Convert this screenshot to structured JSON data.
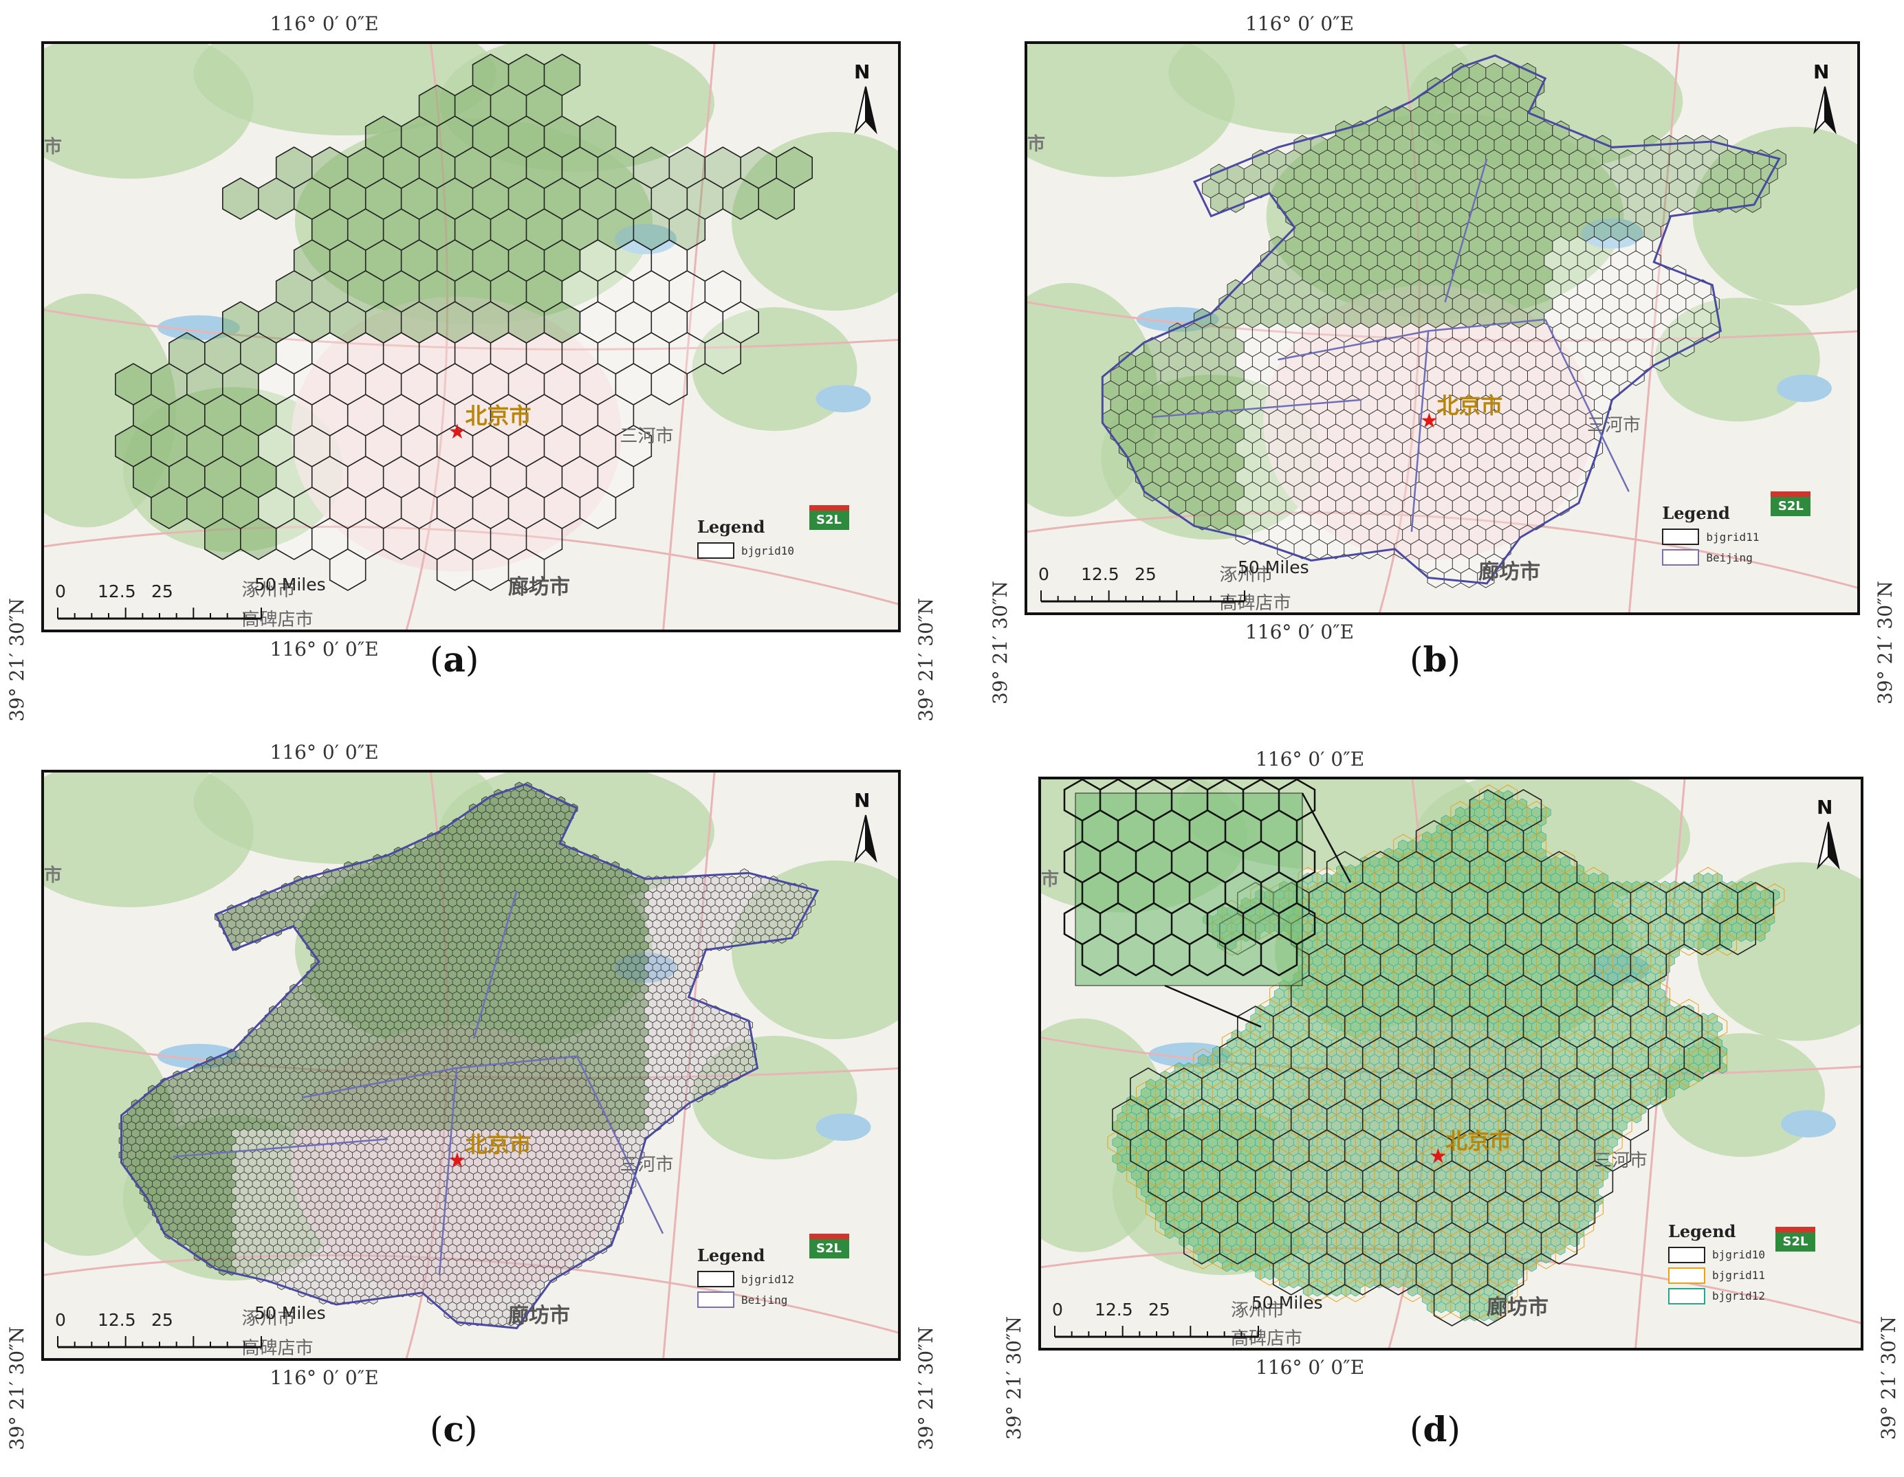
{
  "panels": [
    {
      "id": "a",
      "caption_letter": "a",
      "lon_top": "116° 0′ 0″E",
      "lon_bottom": "116° 0′ 0″E",
      "lat_left": "39° 21′ 30″N",
      "lat_right": "39° 21′ 30″N",
      "labels": {
        "capital": "北京市",
        "sanhe": "三河市",
        "langfang": "廊坊市",
        "zhuozhou": "涿州市",
        "gaobeidian": "高碑店市",
        "edge": "市"
      },
      "scale": {
        "ticks": [
          "0",
          "12.5",
          "25",
          "50 Miles"
        ]
      },
      "shield": "S2L",
      "north": "N",
      "legend": {
        "title": "Legend",
        "items": [
          {
            "label": "bjgrid10",
            "color": "#222222"
          }
        ]
      },
      "grid_level": 1
    },
    {
      "id": "b",
      "caption_letter": "b",
      "lon_top": "116° 0′ 0″E",
      "lon_bottom": "116° 0′ 0″E",
      "lat_left": "39° 21′ 30″N",
      "lat_right": "39° 21′ 30″N",
      "labels": {
        "capital": "北京市",
        "sanhe": "三河市",
        "langfang": "廊坊市",
        "zhuozhou": "涿州市",
        "gaobeidian": "高碑店市",
        "edge": "市"
      },
      "scale": {
        "ticks": [
          "0",
          "12.5",
          "25",
          "50 Miles"
        ]
      },
      "shield": "S2L",
      "north": "N",
      "legend": {
        "title": "Legend",
        "items": [
          {
            "label": "bjgrid11",
            "color": "#222222"
          },
          {
            "label": "Beijing",
            "color": "#7b6fb0"
          }
        ]
      },
      "grid_level": 2
    },
    {
      "id": "c",
      "caption_letter": "c",
      "lon_top": "116° 0′ 0″E",
      "lon_bottom": "116° 0′ 0″E",
      "lat_left": "39° 21′ 30″N",
      "lat_right": "39° 21′ 30″N",
      "labels": {
        "capital": "北京市",
        "sanhe": "三河市",
        "langfang": "廊坊市",
        "zhuozhou": "涿州市",
        "gaobeidian": "高碑店市",
        "edge": "市"
      },
      "scale": {
        "ticks": [
          "0",
          "12.5",
          "25",
          "50 Miles"
        ]
      },
      "shield": "S2L",
      "north": "N",
      "legend": {
        "title": "Legend",
        "items": [
          {
            "label": "bjgrid12",
            "color": "#222222"
          },
          {
            "label": "Beijing",
            "color": "#7b6fb0"
          }
        ]
      },
      "grid_level": 3
    },
    {
      "id": "d",
      "caption_letter": "d",
      "lon_top": "116° 0′ 0″E",
      "lon_bottom": "116° 0′ 0″E",
      "lat_left": "39° 21′ 30″N",
      "lat_right": "39° 21′ 30″N",
      "labels": {
        "capital": "北京市",
        "sanhe": "三河市",
        "langfang": "廊坊市",
        "zhuozhou": "涿州市",
        "gaobeidian": "高碑店市",
        "edge": "市"
      },
      "scale": {
        "ticks": [
          "0",
          "12.5",
          "25",
          "50 Miles"
        ]
      },
      "shield": "S2L",
      "north": "N",
      "legend": {
        "title": "Legend",
        "items": [
          {
            "label": "bjgrid10",
            "color": "#222222"
          },
          {
            "label": "bjgrid11",
            "color": "#e8a317"
          },
          {
            "label": "bjgrid12",
            "color": "#2aa58a"
          }
        ]
      },
      "grid_level": 4
    }
  ],
  "colors": {
    "forest": "#b9d7a8",
    "land": "#f3f1ec",
    "urban": "#f2dede",
    "water": "#a9cfe8",
    "road": "#e8b4b4",
    "hex_green_fill": "#9cc98a"
  }
}
